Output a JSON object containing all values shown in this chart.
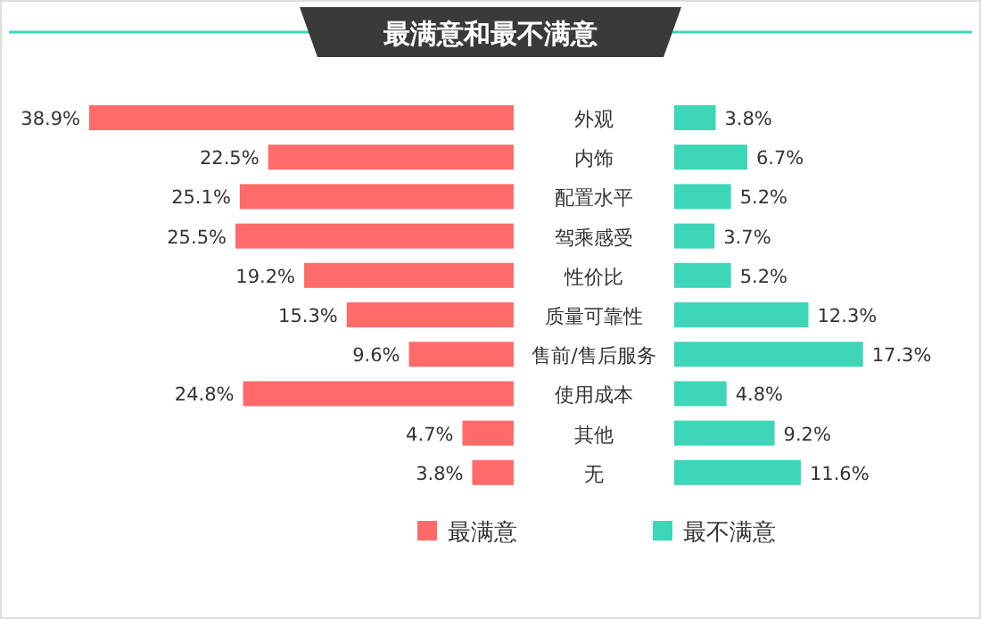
{
  "chart_data": [
    {
      "type": "bar",
      "orientation": "horizontal",
      "title": "最满意和最不满意",
      "categories": [
        "外观",
        "内饰",
        "配置水平",
        "驾乘感受",
        "性价比",
        "质量可靠性",
        "售前/售后服务",
        "使用成本",
        "其他",
        "无"
      ],
      "series": [
        {
          "name": "最满意",
          "color": "#ff6b6b",
          "values": [
            38.9,
            22.5,
            25.1,
            25.5,
            19.2,
            15.3,
            9.6,
            24.8,
            4.7,
            3.8
          ],
          "value_labels": [
            "38.9%",
            "22.5%",
            "25.1%",
            "25.5%",
            "19.2%",
            "15.3%",
            "9.6%",
            "24.8%",
            "4.7%",
            "3.8%"
          ]
        }
      ],
      "legend": "bottom"
    },
    {
      "type": "bar",
      "orientation": "horizontal",
      "categories": [
        null,
        null,
        null,
        null,
        null,
        null,
        null,
        null,
        null,
        null
      ],
      "series": [
        {
          "name": "最不满意",
          "color": "#3dd6b9",
          "values": [
            3.8,
            6.7,
            5.2,
            3.7,
            5.2,
            12.3,
            17.3,
            4.8,
            9.2,
            11.6
          ],
          "value_labels": [
            "3.8%",
            "6.7%",
            "5.2%",
            "3.7%",
            "5.2%",
            "12.3%",
            "17.3%",
            "4.8%",
            "9.2%",
            "11.6%"
          ]
        }
      ],
      "legend": "bottom"
    }
  ]
}
